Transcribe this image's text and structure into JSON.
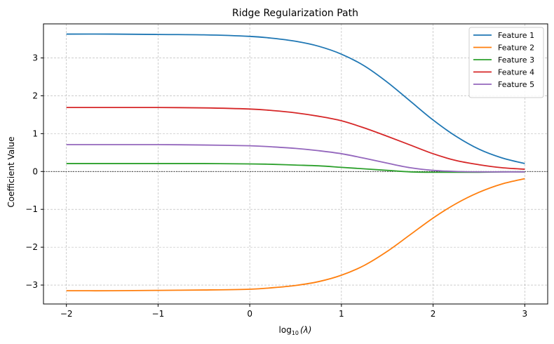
{
  "chart_data": {
    "type": "line",
    "title": "Ridge Regularization Path",
    "xlabel_base": "log",
    "xlabel_sub": "10",
    "xlabel_arg": "(λ)",
    "ylabel": "Coefficient Value",
    "xlim": [
      -2.25,
      3.25
    ],
    "ylim": [
      -3.5,
      3.9
    ],
    "x_ticks": [
      -2,
      -1,
      0,
      1,
      2,
      3
    ],
    "x_tick_labels": [
      "−2",
      "−1",
      "0",
      "1",
      "2",
      "3"
    ],
    "y_ticks": [
      -3,
      -2,
      -1,
      0,
      1,
      2,
      3
    ],
    "y_tick_labels": [
      "−3",
      "−2",
      "−1",
      "0",
      "1",
      "2",
      "3"
    ],
    "grid": true,
    "zero_line": true,
    "legend_position": "top-right",
    "x": [
      -2.0,
      -1.5,
      -1.0,
      -0.5,
      0.0,
      0.25,
      0.5,
      0.75,
      1.0,
      1.25,
      1.5,
      1.75,
      2.0,
      2.25,
      2.5,
      2.75,
      3.0
    ],
    "series": [
      {
        "name": "Feature 1",
        "color": "#1f77b4",
        "values": [
          3.63,
          3.63,
          3.62,
          3.61,
          3.57,
          3.52,
          3.44,
          3.31,
          3.1,
          2.79,
          2.36,
          1.86,
          1.36,
          0.93,
          0.59,
          0.36,
          0.21
        ]
      },
      {
        "name": "Feature 2",
        "color": "#ff7f0e",
        "values": [
          -3.15,
          -3.15,
          -3.14,
          -3.13,
          -3.11,
          -3.07,
          -3.01,
          -2.91,
          -2.74,
          -2.48,
          -2.11,
          -1.67,
          -1.23,
          -0.85,
          -0.55,
          -0.33,
          -0.19
        ]
      },
      {
        "name": "Feature 3",
        "color": "#2ca02c",
        "values": [
          0.21,
          0.21,
          0.21,
          0.21,
          0.2,
          0.19,
          0.17,
          0.15,
          0.11,
          0.07,
          0.03,
          -0.01,
          -0.02,
          -0.02,
          -0.02,
          -0.01,
          -0.01
        ]
      },
      {
        "name": "Feature 4",
        "color": "#d62728",
        "values": [
          1.69,
          1.69,
          1.69,
          1.68,
          1.65,
          1.61,
          1.55,
          1.46,
          1.34,
          1.15,
          0.93,
          0.7,
          0.47,
          0.29,
          0.18,
          0.1,
          0.06
        ]
      },
      {
        "name": "Feature 5",
        "color": "#9467bd",
        "values": [
          0.71,
          0.71,
          0.71,
          0.7,
          0.68,
          0.65,
          0.61,
          0.55,
          0.47,
          0.35,
          0.22,
          0.1,
          0.03,
          0.0,
          -0.01,
          -0.01,
          -0.01
        ]
      }
    ]
  }
}
